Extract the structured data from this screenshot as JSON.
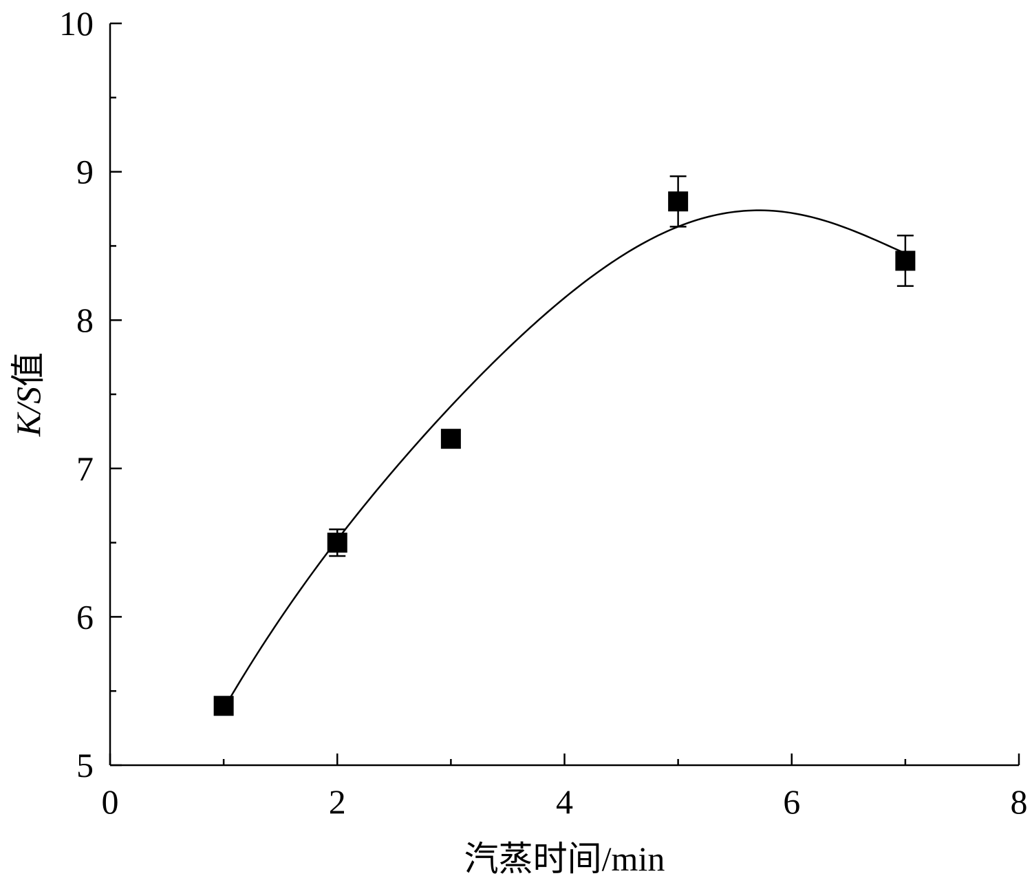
{
  "chart_data": {
    "type": "scatter",
    "xlabel": "汽蒸时间/min",
    "ylabel_italic": "K/S",
    "ylabel_suffix": "值",
    "xlim": [
      0,
      8
    ],
    "ylim": [
      5,
      10
    ],
    "x_ticks": [
      0,
      2,
      4,
      6,
      8
    ],
    "x_minor_ticks": [
      1,
      3,
      5,
      7
    ],
    "y_ticks": [
      5,
      6,
      7,
      8,
      9,
      10
    ],
    "y_minor_ticks": [
      5.5,
      6.5,
      7.5,
      8.5,
      9.5
    ],
    "grid": false,
    "legend": "none",
    "series": [
      {
        "marker": "filled-square",
        "color": "#000000",
        "x": [
          1,
          2,
          3,
          5,
          7
        ],
        "y": [
          5.4,
          6.5,
          7.2,
          8.8,
          8.4
        ],
        "yerr": [
          0.03,
          0.09,
          0.04,
          0.17,
          0.17
        ]
      }
    ],
    "fit": {
      "type": "polynomial-curve",
      "color": "#000000",
      "x_range": [
        1,
        7
      ],
      "points_x": [
        1,
        2,
        3,
        4,
        5,
        5.7,
        7
      ],
      "points_y": [
        5.38,
        6.52,
        7.42,
        8.15,
        8.63,
        8.74,
        8.45
      ]
    }
  }
}
